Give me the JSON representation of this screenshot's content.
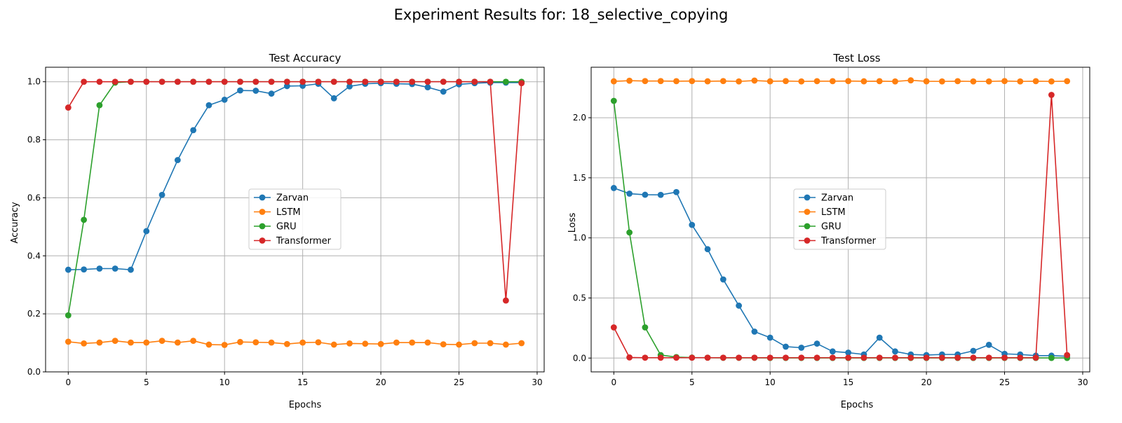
{
  "figure": {
    "title": "Experiment Results for: 18_selective_copying"
  },
  "series_styles": [
    {
      "name": "Zarvan",
      "color": "#1f77b4"
    },
    {
      "name": "LSTM",
      "color": "#ff7f0e"
    },
    {
      "name": "GRU",
      "color": "#2ca02c"
    },
    {
      "name": "Transformer",
      "color": "#d62728"
    }
  ],
  "chart_data": [
    {
      "type": "line",
      "title": "Test Accuracy",
      "xlabel": "Epochs",
      "ylabel": "Accuracy",
      "xlim": [
        -1.45,
        30.45
      ],
      "ylim": [
        0.0,
        1.05
      ],
      "xticks": [
        0,
        5,
        10,
        15,
        20,
        25,
        30
      ],
      "yticks": [
        0.0,
        0.2,
        0.4,
        0.6,
        0.8,
        1.0
      ],
      "ytick_labels": [
        "0.0",
        "0.2",
        "0.4",
        "0.6",
        "0.8",
        "1.0"
      ],
      "grid": true,
      "legend": "center",
      "x": [
        0,
        1,
        2,
        3,
        4,
        5,
        6,
        7,
        8,
        9,
        10,
        11,
        12,
        13,
        14,
        15,
        16,
        17,
        18,
        19,
        20,
        21,
        22,
        23,
        24,
        25,
        26,
        27,
        28,
        29
      ],
      "series": [
        {
          "name": "Zarvan",
          "values": [
            0.352,
            0.353,
            0.356,
            0.356,
            0.352,
            0.485,
            0.61,
            0.73,
            0.833,
            0.919,
            0.938,
            0.97,
            0.969,
            0.959,
            0.985,
            0.986,
            0.993,
            0.943,
            0.984,
            0.993,
            0.995,
            0.993,
            0.992,
            0.981,
            0.966,
            0.991,
            0.995,
            0.997,
            0.997,
            0.997
          ]
        },
        {
          "name": "LSTM",
          "values": [
            0.104,
            0.098,
            0.101,
            0.107,
            0.101,
            0.101,
            0.107,
            0.101,
            0.107,
            0.094,
            0.093,
            0.103,
            0.102,
            0.101,
            0.096,
            0.101,
            0.102,
            0.094,
            0.098,
            0.097,
            0.096,
            0.101,
            0.101,
            0.101,
            0.095,
            0.094,
            0.099,
            0.099,
            0.094,
            0.099
          ]
        },
        {
          "name": "GRU",
          "values": [
            0.195,
            0.524,
            0.919,
            0.997,
            1.0,
            1.0,
            1.0,
            1.0,
            1.0,
            1.0,
            1.0,
            1.0,
            1.0,
            1.0,
            1.0,
            1.0,
            1.0,
            1.0,
            1.0,
            1.0,
            1.0,
            1.0,
            1.0,
            1.0,
            1.0,
            1.0,
            1.0,
            1.0,
            1.0,
            1.0
          ]
        },
        {
          "name": "Transformer",
          "values": [
            0.911,
            1.0,
            1.0,
            1.0,
            1.0,
            1.0,
            1.0,
            1.0,
            1.0,
            1.0,
            1.0,
            1.0,
            1.0,
            1.0,
            1.0,
            1.0,
            1.0,
            1.0,
            1.0,
            1.0,
            1.0,
            1.0,
            1.0,
            1.0,
            1.0,
            1.0,
            1.0,
            1.0,
            0.246,
            0.995
          ]
        }
      ]
    },
    {
      "type": "line",
      "title": "Test Loss",
      "xlabel": "Epochs",
      "ylabel": "Loss",
      "xlim": [
        -1.45,
        30.45
      ],
      "ylim": [
        -0.115,
        2.42
      ],
      "xticks": [
        0,
        5,
        10,
        15,
        20,
        25,
        30
      ],
      "yticks": [
        0.0,
        0.5,
        1.0,
        1.5,
        2.0
      ],
      "ytick_labels": [
        "0.0",
        "0.5",
        "1.0",
        "1.5",
        "2.0"
      ],
      "grid": true,
      "legend": "center",
      "x": [
        0,
        1,
        2,
        3,
        4,
        5,
        6,
        7,
        8,
        9,
        10,
        11,
        12,
        13,
        14,
        15,
        16,
        17,
        18,
        19,
        20,
        21,
        22,
        23,
        24,
        25,
        26,
        27,
        28,
        29
      ],
      "series": [
        {
          "name": "Zarvan",
          "values": [
            1.415,
            1.368,
            1.359,
            1.358,
            1.381,
            1.108,
            0.906,
            0.654,
            0.436,
            0.22,
            0.17,
            0.095,
            0.086,
            0.12,
            0.055,
            0.045,
            0.03,
            0.17,
            0.055,
            0.03,
            0.025,
            0.03,
            0.03,
            0.06,
            0.11,
            0.035,
            0.03,
            0.02,
            0.02,
            0.015
          ]
        },
        {
          "name": "LSTM",
          "values": [
            2.303,
            2.308,
            2.305,
            2.305,
            2.304,
            2.305,
            2.303,
            2.305,
            2.302,
            2.309,
            2.303,
            2.305,
            2.302,
            2.304,
            2.304,
            2.305,
            2.303,
            2.304,
            2.302,
            2.311,
            2.303,
            2.302,
            2.304,
            2.302,
            2.302,
            2.305,
            2.302,
            2.304,
            2.302,
            2.304
          ]
        },
        {
          "name": "GRU",
          "values": [
            2.14,
            1.045,
            0.255,
            0.025,
            0.008,
            0.004,
            0.003,
            0.002,
            0.002,
            0.002,
            0.001,
            0.001,
            0.001,
            0.001,
            0.001,
            0.001,
            0.001,
            0.001,
            0.001,
            0.001,
            0.001,
            0.001,
            0.001,
            0.001,
            0.001,
            0.001,
            0.001,
            0.001,
            0.001,
            0.001
          ]
        },
        {
          "name": "Transformer",
          "values": [
            0.255,
            0.005,
            0.003,
            0.003,
            0.003,
            0.003,
            0.003,
            0.003,
            0.003,
            0.003,
            0.003,
            0.003,
            0.003,
            0.003,
            0.003,
            0.003,
            0.003,
            0.003,
            0.003,
            0.003,
            0.003,
            0.003,
            0.003,
            0.003,
            0.003,
            0.003,
            0.003,
            0.003,
            2.19,
            0.025
          ]
        }
      ]
    }
  ]
}
